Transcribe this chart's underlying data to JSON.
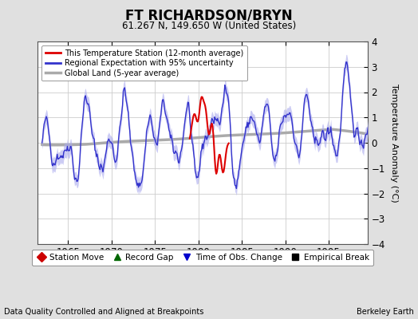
{
  "title": "FT RICHARDSON/BRYN",
  "subtitle": "61.267 N, 149.650 W (United States)",
  "ylabel": "Temperature Anomaly (°C)",
  "xlabel_note": "Data Quality Controlled and Aligned at Breakpoints",
  "attribution": "Berkeley Earth",
  "xlim": [
    1961.5,
    1999.5
  ],
  "ylim": [
    -4,
    4
  ],
  "yticks": [
    -4,
    -3,
    -2,
    -1,
    0,
    1,
    2,
    3,
    4
  ],
  "xticks": [
    1965,
    1970,
    1975,
    1980,
    1985,
    1990,
    1995
  ],
  "bg_color": "#e0e0e0",
  "plot_bg_color": "#ffffff",
  "regional_color": "#3333cc",
  "regional_fill": "#aaaaee",
  "station_color": "#dd0000",
  "global_color": "#aaaaaa",
  "global_lw": 2.5,
  "legend_items": [
    {
      "label": "This Temperature Station (12-month average)",
      "color": "#dd0000",
      "lw": 2
    },
    {
      "label": "Regional Expectation with 95% uncertainty",
      "color": "#3333cc",
      "lw": 2
    },
    {
      "label": "Global Land (5-year average)",
      "color": "#aaaaaa",
      "lw": 2.5
    }
  ],
  "marker_items": [
    {
      "label": "Station Move",
      "color": "#cc0000",
      "marker": "D"
    },
    {
      "label": "Record Gap",
      "color": "#006600",
      "marker": "^"
    },
    {
      "label": "Time of Obs. Change",
      "color": "#0000cc",
      "marker": "v"
    },
    {
      "label": "Empirical Break",
      "color": "#000000",
      "marker": "s"
    }
  ]
}
